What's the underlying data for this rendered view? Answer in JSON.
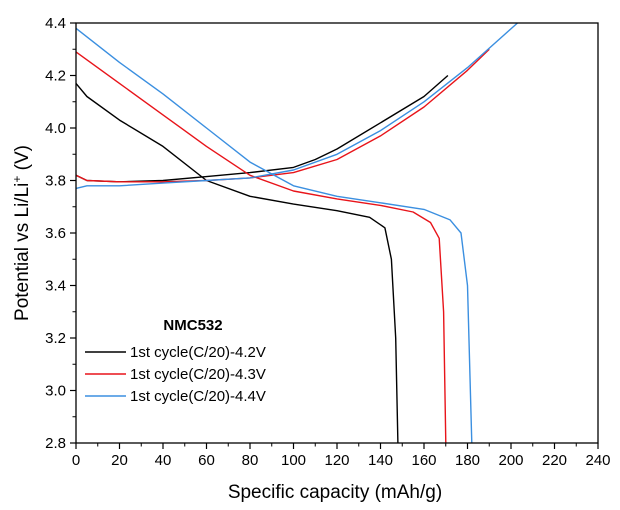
{
  "chart_data": {
    "type": "line",
    "title": "",
    "xlabel": "Specific capacity (mAh/g)",
    "ylabel_main": "Potential vs Li/Li",
    "ylabel_sup": "+",
    "ylabel_unit": " (V)",
    "xlim": [
      0,
      240
    ],
    "ylim": [
      2.8,
      4.4
    ],
    "xticks": [
      0,
      20,
      40,
      60,
      80,
      100,
      120,
      140,
      160,
      180,
      200,
      220,
      240
    ],
    "yticks": [
      "2.8",
      "3.0",
      "3.2",
      "3.4",
      "3.6",
      "3.8",
      "4.0",
      "4.2",
      "4.4"
    ],
    "grid": false,
    "legend_title": "NMC532",
    "legend_placement": "bottom-left",
    "series": [
      {
        "name": "1st cycle(C/20)-4.2V",
        "color": "#000000",
        "charge": [
          [
            0,
            3.82
          ],
          [
            5,
            3.8
          ],
          [
            20,
            3.795
          ],
          [
            40,
            3.8
          ],
          [
            60,
            3.815
          ],
          [
            80,
            3.83
          ],
          [
            100,
            3.85
          ],
          [
            110,
            3.88
          ],
          [
            120,
            3.92
          ],
          [
            140,
            4.02
          ],
          [
            160,
            4.12
          ],
          [
            171,
            4.2
          ]
        ],
        "discharge": [
          [
            0,
            4.17
          ],
          [
            5,
            4.12
          ],
          [
            20,
            4.03
          ],
          [
            40,
            3.93
          ],
          [
            60,
            3.8
          ],
          [
            80,
            3.74
          ],
          [
            100,
            3.71
          ],
          [
            120,
            3.685
          ],
          [
            135,
            3.66
          ],
          [
            142,
            3.62
          ],
          [
            145,
            3.5
          ],
          [
            147,
            3.2
          ],
          [
            148,
            2.8
          ]
        ]
      },
      {
        "name": "1st cycle(C/20)-4.3V",
        "color": "#e8141a",
        "charge": [
          [
            0,
            3.82
          ],
          [
            5,
            3.8
          ],
          [
            20,
            3.795
          ],
          [
            40,
            3.795
          ],
          [
            60,
            3.8
          ],
          [
            80,
            3.81
          ],
          [
            100,
            3.83
          ],
          [
            120,
            3.88
          ],
          [
            140,
            3.97
          ],
          [
            160,
            4.08
          ],
          [
            180,
            4.22
          ],
          [
            190,
            4.3
          ]
        ],
        "discharge": [
          [
            0,
            4.29
          ],
          [
            20,
            4.17
          ],
          [
            40,
            4.05
          ],
          [
            60,
            3.93
          ],
          [
            80,
            3.82
          ],
          [
            100,
            3.76
          ],
          [
            120,
            3.73
          ],
          [
            140,
            3.705
          ],
          [
            155,
            3.68
          ],
          [
            163,
            3.64
          ],
          [
            167,
            3.58
          ],
          [
            169,
            3.3
          ],
          [
            170,
            2.8
          ]
        ]
      },
      {
        "name": "1st cycle(C/20)-4.4V",
        "color": "#3b8fe0",
        "charge": [
          [
            0,
            3.77
          ],
          [
            5,
            3.78
          ],
          [
            20,
            3.78
          ],
          [
            40,
            3.79
          ],
          [
            60,
            3.8
          ],
          [
            80,
            3.81
          ],
          [
            100,
            3.84
          ],
          [
            120,
            3.9
          ],
          [
            140,
            3.99
          ],
          [
            160,
            4.1
          ],
          [
            180,
            4.23
          ],
          [
            203,
            4.4
          ]
        ],
        "discharge": [
          [
            0,
            4.38
          ],
          [
            20,
            4.25
          ],
          [
            40,
            4.13
          ],
          [
            60,
            4.0
          ],
          [
            80,
            3.87
          ],
          [
            100,
            3.78
          ],
          [
            120,
            3.74
          ],
          [
            140,
            3.715
          ],
          [
            160,
            3.69
          ],
          [
            172,
            3.65
          ],
          [
            177,
            3.6
          ],
          [
            180,
            3.4
          ],
          [
            182,
            2.8
          ]
        ]
      }
    ]
  }
}
